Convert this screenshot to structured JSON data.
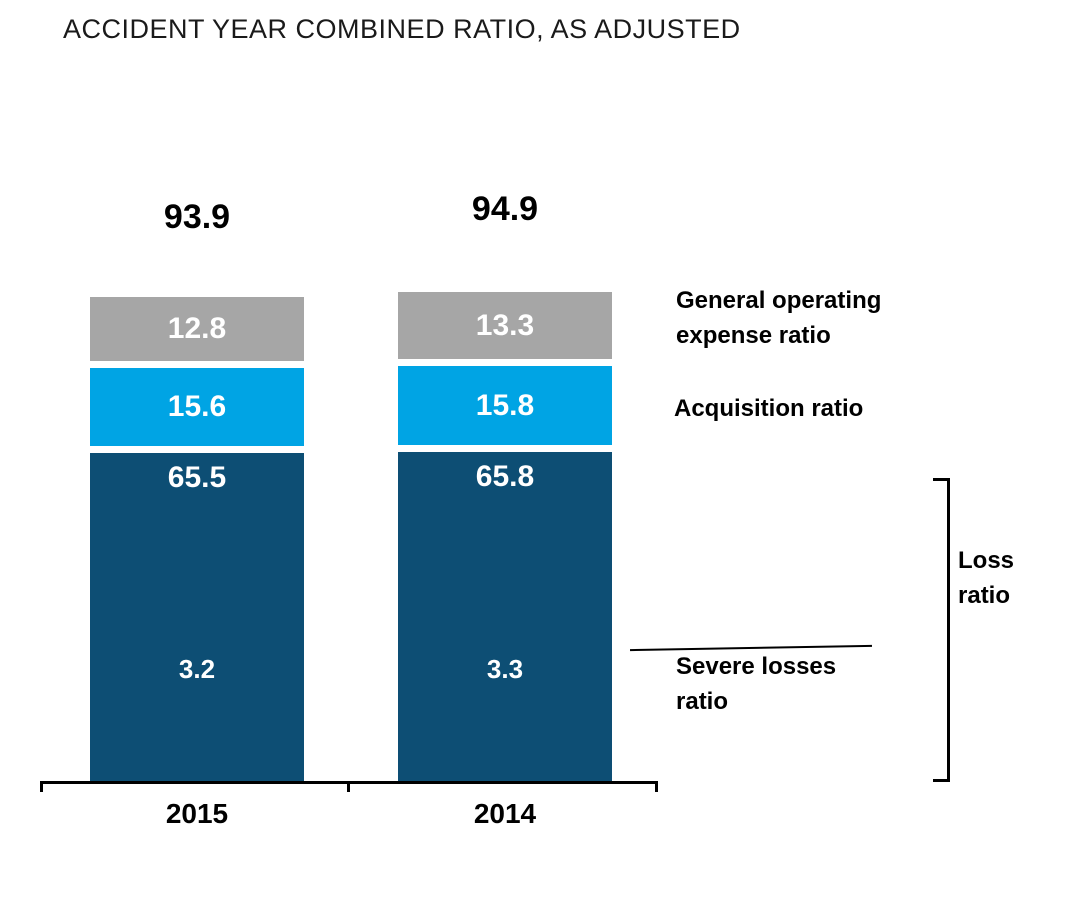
{
  "chart_data": {
    "type": "bar",
    "stacked": true,
    "title": "ACCIDENT YEAR COMBINED RATIO, AS ADJUSTED",
    "categories": [
      "2015",
      "2014"
    ],
    "totals": [
      "93.9",
      "94.9"
    ],
    "series": [
      {
        "name": "General operating expense ratio",
        "color": "#a6a6a6",
        "values": [
          12.8,
          13.3
        ]
      },
      {
        "name": "Acquisition ratio",
        "color": "#00a4e4",
        "values": [
          15.6,
          15.8
        ]
      },
      {
        "name": "Loss ratio",
        "color": "#0d4e74",
        "values": [
          65.5,
          65.8
        ]
      }
    ],
    "annotations": [
      {
        "name": "Severe losses ratio",
        "values": [
          3.2,
          3.3
        ]
      }
    ],
    "legend_position": "right",
    "ylim": [
      0,
      100
    ],
    "gridlines": false,
    "value_label_color": "#ffffff",
    "total_label_color": "#000000"
  }
}
